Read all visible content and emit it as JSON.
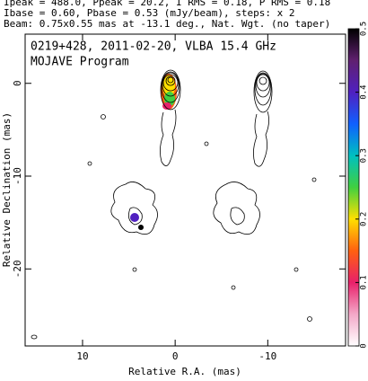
{
  "chart_data": {
    "type": "image",
    "header": [
      "Ipeak = 488.0, Ppeak = 20.2, I RMS = 0.18, P RMS = 0.18",
      "Ibase = 0.60, Pbase = 0.53 (mJy/beam), steps: x 2",
      "Beam: 0.75x0.55 mas at -13.1 deg., Nat. Wgt. (no taper)"
    ],
    "annotations": [
      "0219+428, 2011-02-20, VLBA 15.4 GHz",
      "MOJAVE Program"
    ],
    "xlabel": "Relative R.A. (mas)",
    "ylabel": "Relative Declination (mas)",
    "xlim": [
      16.2,
      -18.4
    ],
    "ylim": [
      -28.3,
      5.3
    ],
    "xticks": [
      10,
      0,
      -10
    ],
    "yticks": [
      0,
      -10,
      -20
    ],
    "colorbar": {
      "lim": [
        0,
        0.5
      ],
      "ticks": [
        0,
        0.1,
        0.2,
        0.3,
        0.4,
        0.5
      ]
    }
  }
}
